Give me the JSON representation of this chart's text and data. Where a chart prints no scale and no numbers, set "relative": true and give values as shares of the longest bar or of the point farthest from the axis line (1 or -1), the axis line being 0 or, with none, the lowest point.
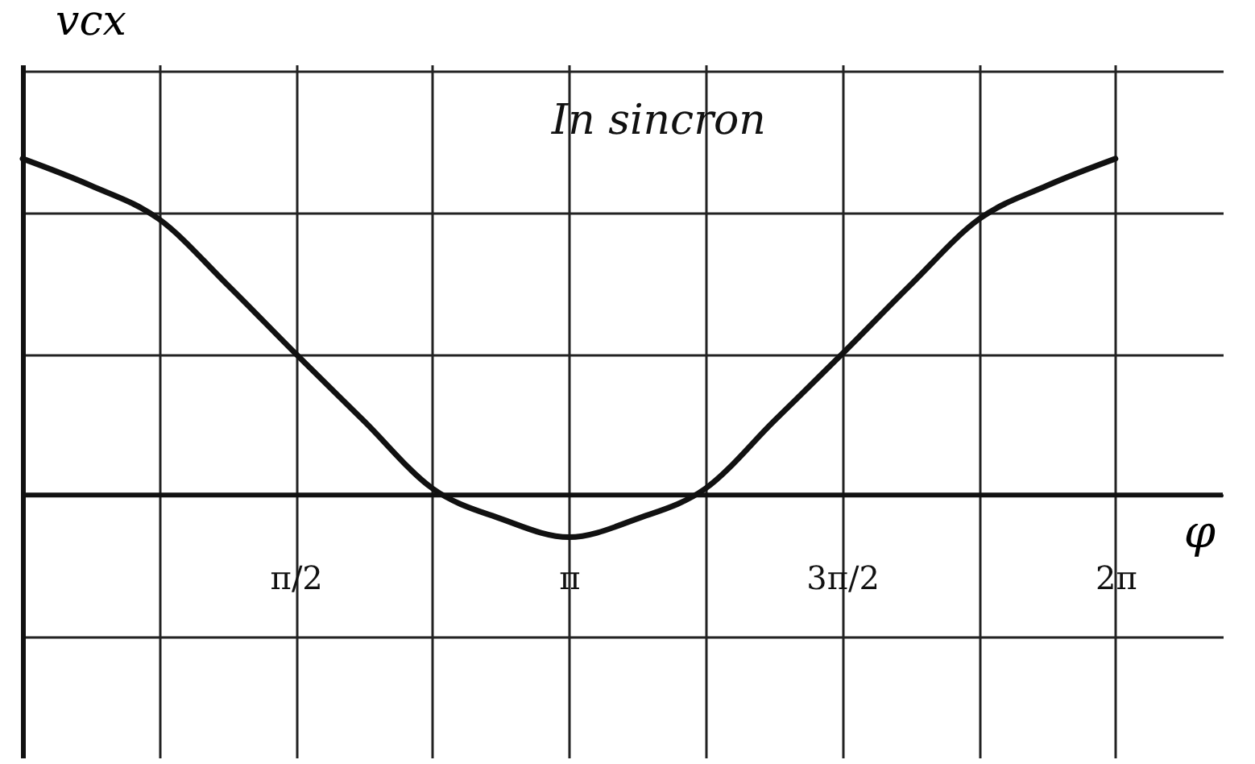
{
  "chart_data": {
    "type": "line",
    "relative": true,
    "xlabel": "φ",
    "ylabel": "vcx",
    "annotations": [
      "In sincron"
    ],
    "x": [
      0,
      0.3927,
      0.7854,
      1.1781,
      1.5708,
      1.9635,
      2.3562,
      2.7489,
      3.1416,
      3.5343,
      3.927,
      4.3197,
      4.7124,
      5.1051,
      5.4978,
      5.8905,
      6.2832
    ],
    "series": [
      {
        "color": "#111111",
        "values": [
          1,
          0.92,
          0.82,
          0.625,
          0.42,
          0.22,
          0.02,
          -0.07,
          -0.125,
          -0.07,
          0.02,
          0.22,
          0.42,
          0.625,
          0.82,
          0.92,
          1
        ]
      }
    ],
    "xlim": [
      0,
      6.9
    ],
    "xticks": [
      {
        "value": 0.7854,
        "label": null
      },
      {
        "value": 1.5708,
        "label": "π/2"
      },
      {
        "value": 2.3562,
        "label": null
      },
      {
        "value": 3.1416,
        "label": "π"
      },
      {
        "value": 3.927,
        "label": null
      },
      {
        "value": 4.7124,
        "label": "3π/2"
      },
      {
        "value": 5.4978,
        "label": null
      },
      {
        "value": 6.2832,
        "label": "2π"
      }
    ],
    "grid": true,
    "marker": "none",
    "line_style": "solid"
  }
}
